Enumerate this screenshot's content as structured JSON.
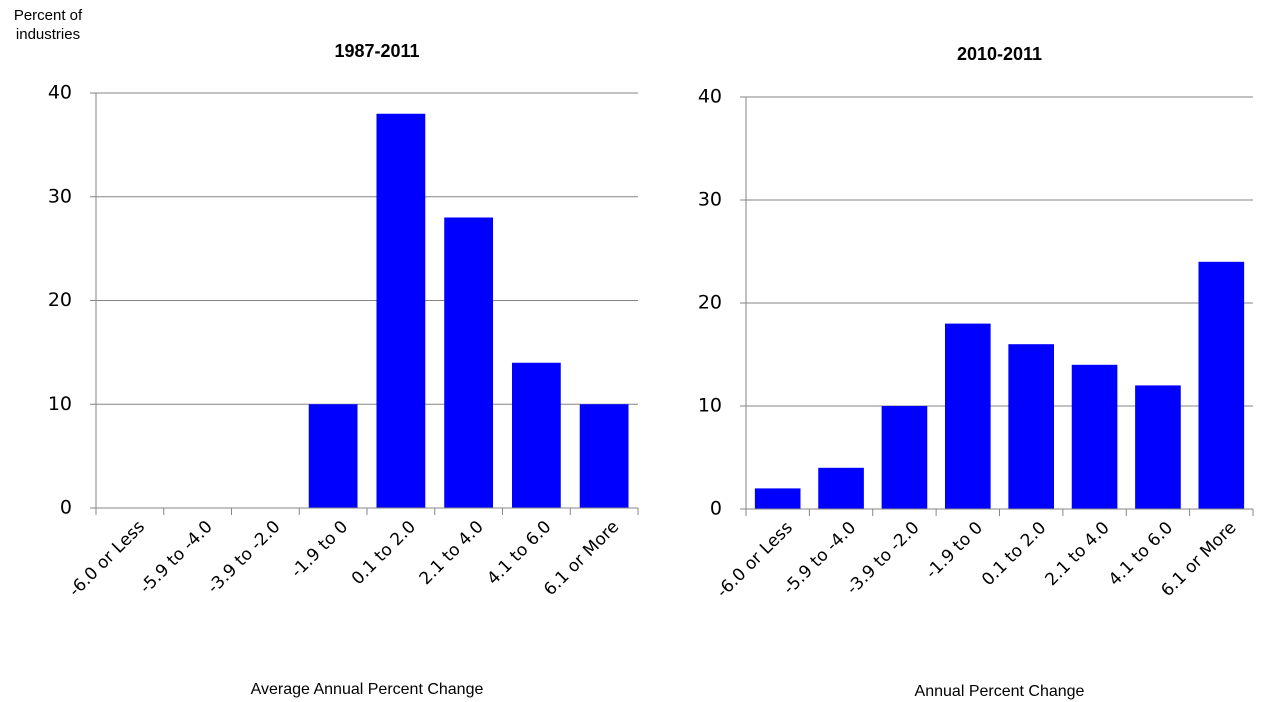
{
  "chart_data": [
    {
      "type": "bar",
      "title": "1987-2011",
      "ylabel": "Percent of industries",
      "xlabel": "Average Annual Percent Change",
      "categories": [
        "-6.0 or Less",
        "-5.9 to -4.0",
        "-3.9 to -2.0",
        "-1.9 to 0",
        "0.1 to 2.0",
        "2.1 to 4.0",
        "4.1 to 6.0",
        "6.1 or More"
      ],
      "values": [
        0,
        0,
        0,
        10,
        38,
        28,
        14,
        10
      ],
      "color": "#0000ff",
      "ylim": [
        0,
        40
      ],
      "yticks": [
        0,
        10,
        20,
        30,
        40
      ],
      "grid": true
    },
    {
      "type": "bar",
      "title": "2010-2011",
      "xlabel": "Annual Percent Change",
      "categories": [
        "-6.0 or Less",
        "-5.9 to -4.0",
        "-3.9 to -2.0",
        "-1.9 to 0",
        "0.1 to 2.0",
        "2.1 to 4.0",
        "4.1 to 6.0",
        "6.1 or More"
      ],
      "values": [
        2,
        4,
        10,
        18,
        16,
        14,
        12,
        24
      ],
      "color": "#0000ff",
      "ylim": [
        0,
        40
      ],
      "yticks": [
        0,
        10,
        20,
        30,
        40
      ],
      "grid": true
    }
  ]
}
